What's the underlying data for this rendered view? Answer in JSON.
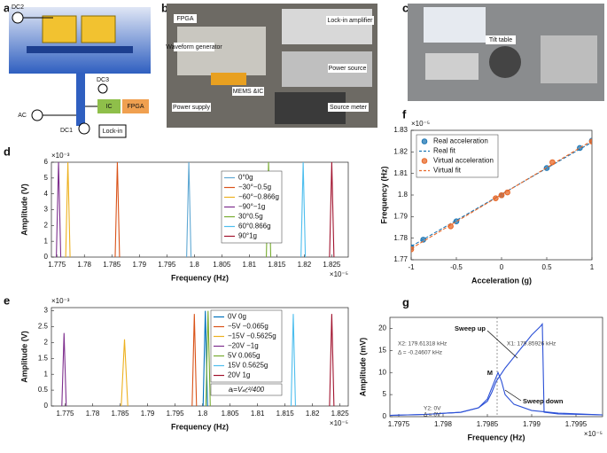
{
  "panel_letters": [
    "a",
    "b",
    "c",
    "d",
    "e",
    "f",
    "g"
  ],
  "schematic": {
    "labels": [
      "DC2",
      "DC3",
      "AC",
      "DC1",
      "IC",
      "FPGA",
      "Lock-in"
    ]
  },
  "photo_b": {
    "labels": [
      "FPGA",
      "Waveform generator",
      "Lock-in amplifier",
      "Power source",
      "MEMS &IC",
      "Power supply",
      "Source meter"
    ]
  },
  "photo_c": {
    "labels": [
      "Tilt table"
    ]
  },
  "chart_data": [
    {
      "type": "line",
      "x_label": "Frequency (Hz)",
      "y_label": "Amplitude (V)",
      "x_multiplier": "×10⁻⁵",
      "y_multiplier": "×10⁻³",
      "xlim": [
        1.774,
        1.828
      ],
      "xticks": [
        1.775,
        1.78,
        1.785,
        1.79,
        1.795,
        1.8,
        1.805,
        1.81,
        1.815,
        1.82,
        1.825
      ],
      "ylim": [
        0,
        6
      ],
      "yticks": [
        0,
        1,
        2,
        3,
        4,
        5,
        6
      ],
      "series": [
        {
          "name": "0°0g",
          "color": "#5fa8d3",
          "x": [
            1.7986,
            1.799,
            1.7994
          ],
          "values": [
            0,
            6,
            0
          ]
        },
        {
          "name": "−30°−0.5g",
          "color": "#D95319",
          "x": [
            1.7856,
            1.786,
            1.7864
          ],
          "values": [
            0,
            6,
            0
          ]
        },
        {
          "name": "−60°−0.866g",
          "color": "#EDB120",
          "x": [
            1.7766,
            1.777,
            1.7774
          ],
          "values": [
            0,
            6,
            0
          ]
        },
        {
          "name": "−90°−1g",
          "color": "#7E2F8E",
          "x": [
            1.7749,
            1.7753,
            1.7757
          ],
          "values": [
            0,
            6,
            0
          ]
        },
        {
          "name": "30°0.5g",
          "color": "#77AC30",
          "x": [
            1.8131,
            1.8135,
            1.8139
          ],
          "values": [
            0,
            6,
            0
          ]
        },
        {
          "name": "60°0.866g",
          "color": "#4DBEEE",
          "x": [
            1.8194,
            1.8198,
            1.8202
          ],
          "values": [
            0,
            6,
            0
          ]
        },
        {
          "name": "90°1g",
          "color": "#A2142F",
          "x": [
            1.8246,
            1.825,
            1.8254
          ],
          "values": [
            0,
            6,
            0
          ]
        }
      ]
    },
    {
      "type": "line",
      "x_label": "Frequency (Hz)",
      "y_label": "Amplitude (V)",
      "x_multiplier": "×10⁻⁵",
      "y_multiplier": "×10⁻³",
      "annotation": "aᵢ=V𝒹꜀²/400",
      "xlim": [
        1.7725,
        1.8265
      ],
      "xticks": [
        1.775,
        1.78,
        1.785,
        1.79,
        1.795,
        1.8,
        1.805,
        1.81,
        1.815,
        1.82,
        1.825
      ],
      "ylim": [
        0,
        3.1
      ],
      "yticks": [
        0,
        0.5,
        1,
        1.5,
        2,
        2.5,
        3
      ],
      "series": [
        {
          "name": "0V 0g",
          "color": "#0072BD",
          "x": [
            1.8001,
            1.8005,
            1.8009
          ],
          "values": [
            0,
            3,
            0
          ]
        },
        {
          "name": "−5V −0.065g",
          "color": "#D95319",
          "x": [
            1.7981,
            1.7985,
            1.7989
          ],
          "values": [
            0,
            2.9,
            0
          ]
        },
        {
          "name": "−15V −0.5625g",
          "color": "#EDB120",
          "x": [
            1.7852,
            1.7858,
            1.7864
          ],
          "values": [
            0,
            2.1,
            0
          ]
        },
        {
          "name": "−20V −1g",
          "color": "#7E2F8E",
          "x": [
            1.7744,
            1.7748,
            1.7752
          ],
          "values": [
            0,
            2.3,
            0
          ]
        },
        {
          "name": "5V 0.065g",
          "color": "#77AC30",
          "x": [
            1.8006,
            1.801,
            1.8014
          ],
          "values": [
            0,
            3,
            0
          ]
        },
        {
          "name": "15V 0.5625g",
          "color": "#4DBEEE",
          "x": [
            1.8161,
            1.8165,
            1.8169
          ],
          "values": [
            0,
            2.9,
            0
          ]
        },
        {
          "name": "20V 1g",
          "color": "#A2142F",
          "x": [
            1.8231,
            1.8235,
            1.8239
          ],
          "values": [
            0,
            2.9,
            0
          ]
        }
      ]
    },
    {
      "type": "scatter",
      "x_label": "Acceleration (g)",
      "y_label": "Frequency (Hz)",
      "y_multiplier": "×10⁻⁵",
      "xlim": [
        -1,
        1
      ],
      "xticks": [
        -1,
        -0.5,
        0,
        0.5,
        1
      ],
      "ylim": [
        1.77,
        1.83
      ],
      "yticks": [
        1.77,
        1.78,
        1.79,
        1.8,
        1.81,
        1.82,
        1.83
      ],
      "series": [
        {
          "name": "Real acceleration",
          "color": "#1f77b4",
          "marker": "o",
          "x": [
            -1,
            -0.866,
            -0.5,
            0,
            0.5,
            0.866,
            1
          ],
          "values": [
            1.7758,
            1.7793,
            1.7878,
            1.7999,
            1.8125,
            1.8218,
            1.8252
          ]
        },
        {
          "name": "Real fit",
          "color": "#1f77b4",
          "linestyle": "--",
          "x": [
            -1,
            1
          ],
          "values": [
            1.7762,
            1.8245
          ]
        },
        {
          "name": "Virtual acceleration",
          "color": "#e8692a",
          "marker": "o",
          "x": [
            -1,
            -0.5625,
            -0.065,
            0,
            0.065,
            0.5625,
            1
          ],
          "values": [
            1.7748,
            1.7855,
            1.7985,
            1.7999,
            1.8012,
            1.8152,
            1.8248
          ]
        },
        {
          "name": "Virtual fit",
          "color": "#e8692a",
          "linestyle": "--",
          "x": [
            -1,
            1
          ],
          "values": [
            1.7752,
            1.8252
          ]
        }
      ]
    },
    {
      "type": "line",
      "x_label": "Frequency (Hz)",
      "y_label": "Amplitude (mV)",
      "x_multiplier": "×10⁻⁵",
      "annotations": [
        "Sweep up",
        "Sweep down",
        "M",
        "X2: 179.61318 kHz",
        "Δ = -0.24607 kHz",
        "X1: 179.85926 kHz",
        "Y2: 0V",
        "Δ = 0V"
      ],
      "cursor_x": 1.79861,
      "xlim": [
        1.7974,
        1.7998
      ],
      "xticks": [
        1.7975,
        1.798,
        1.7985,
        1.799,
        1.7995
      ],
      "ylim": [
        0,
        22.5
      ],
      "yticks": [
        0,
        5,
        10,
        15,
        20
      ],
      "series": [
        {
          "color": "#2a4fd6",
          "x": [
            1.7974,
            1.7978,
            1.7982,
            1.7984,
            1.7985,
            1.79855,
            1.7986,
            1.7987,
            1.7988,
            1.7989,
            1.799,
            1.7991,
            1.79912,
            1.79914,
            1.7993,
            1.7998
          ],
          "values": [
            0.3,
            0.5,
            1,
            2,
            3.5,
            5.5,
            8,
            11,
            13.5,
            16,
            18.5,
            20.5,
            21,
            1,
            0.6,
            0.4
          ]
        },
        {
          "color": "#2a4fd6",
          "x": [
            1.7974,
            1.7978,
            1.7982,
            1.7984,
            1.7985,
            1.79856,
            1.79862,
            1.79866,
            1.7987,
            1.7988,
            1.799,
            1.7993,
            1.7998
          ],
          "values": [
            0.3,
            0.5,
            1,
            2,
            4,
            7,
            10,
            8,
            5,
            2.8,
            1.4,
            0.8,
            0.4
          ]
        }
      ]
    }
  ]
}
